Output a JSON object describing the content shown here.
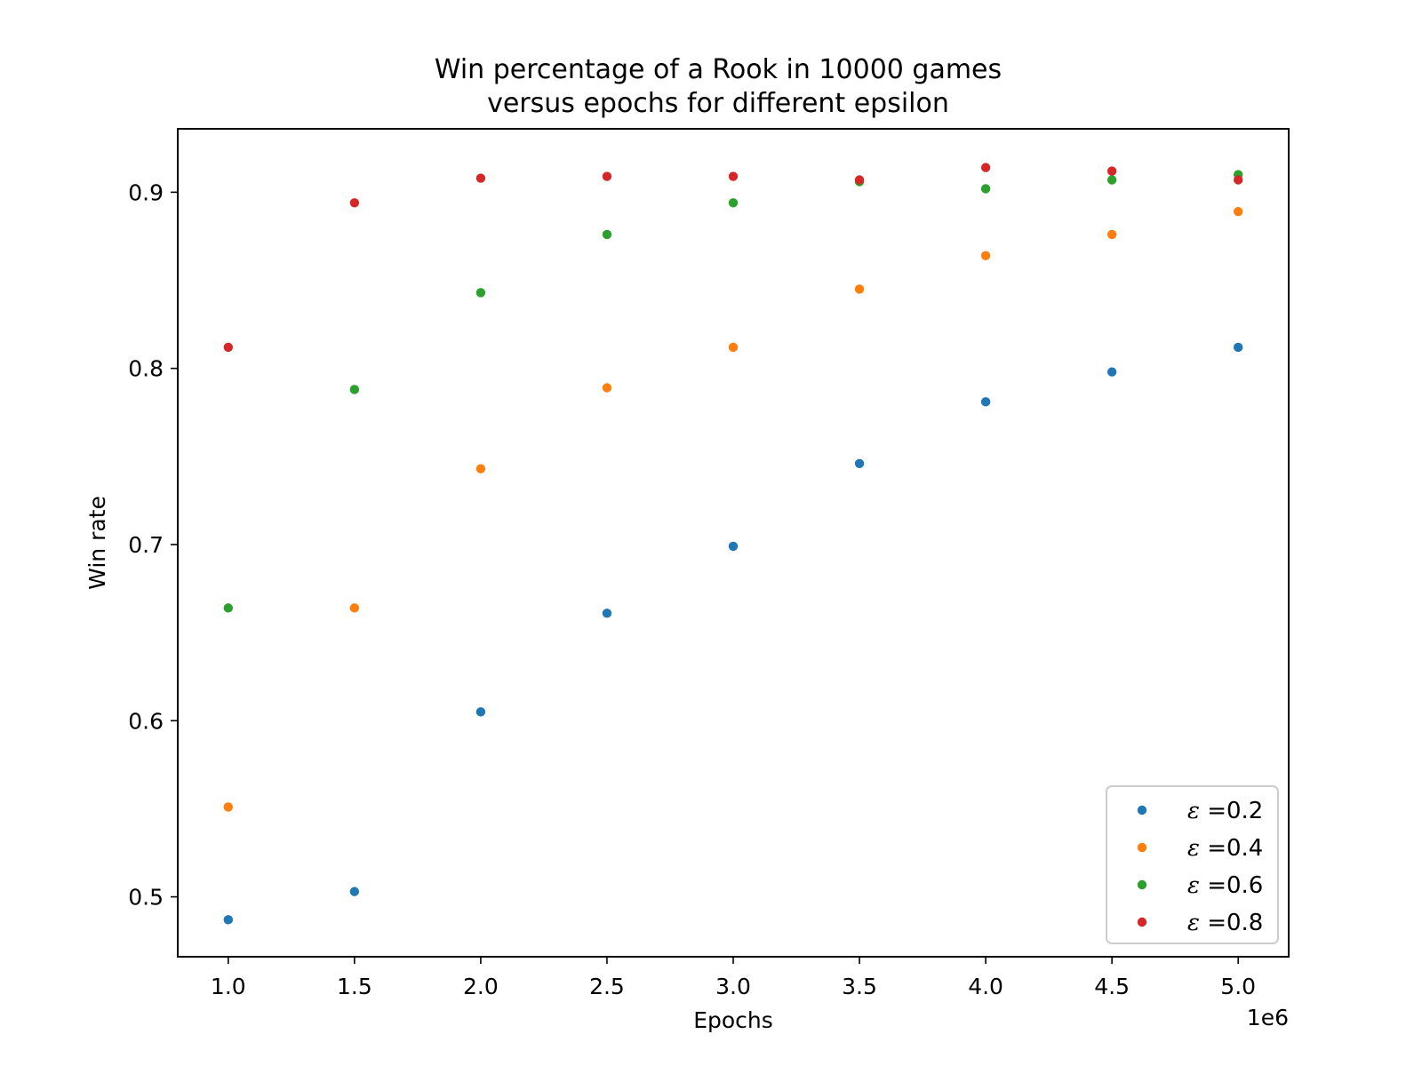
{
  "chart_data": {
    "type": "scatter",
    "title": "Win percentage of a Rook in 10000 games\nversus epochs for different epsilon",
    "title_lines": [
      "Win percentage of a Rook in 10000 games",
      "versus epochs for different epsilon"
    ],
    "xlabel": "Epochs",
    "ylabel": "Win rate",
    "x_offset_label": "1e6",
    "xlim": [
      0.8,
      5.2
    ],
    "ylim": [
      0.466,
      0.936
    ],
    "x_ticks": [
      1.0,
      1.5,
      2.0,
      2.5,
      3.0,
      3.5,
      4.0,
      4.5,
      5.0
    ],
    "x_tick_labels": [
      "1.0",
      "1.5",
      "2.0",
      "2.5",
      "3.0",
      "3.5",
      "4.0",
      "4.5",
      "5.0"
    ],
    "y_ticks": [
      0.5,
      0.6,
      0.7,
      0.8,
      0.9
    ],
    "y_tick_labels": [
      "0.5",
      "0.6",
      "0.7",
      "0.8",
      "0.9"
    ],
    "grid": false,
    "legend_position": "lower-right",
    "x": [
      1.0,
      1.5,
      2.0,
      2.5,
      3.0,
      3.5,
      4.0,
      4.5,
      5.0
    ],
    "series": [
      {
        "name": "ε =0.2",
        "symbol": "ε",
        "value_label": " =0.2",
        "color": "#1f77b4",
        "values": [
          0.487,
          0.503,
          0.605,
          0.661,
          0.699,
          0.746,
          0.781,
          0.798,
          0.812
        ]
      },
      {
        "name": "ε =0.4",
        "symbol": "ε",
        "value_label": " =0.4",
        "color": "#ff7f0e",
        "values": [
          0.551,
          0.664,
          0.743,
          0.789,
          0.812,
          0.845,
          0.864,
          0.876,
          0.889
        ]
      },
      {
        "name": "ε =0.6",
        "symbol": "ε",
        "value_label": " =0.6",
        "color": "#2ca02c",
        "values": [
          0.664,
          0.788,
          0.843,
          0.876,
          0.894,
          0.906,
          0.902,
          0.907,
          0.91
        ]
      },
      {
        "name": "ε =0.8",
        "symbol": "ε",
        "value_label": " =0.8",
        "color": "#d62728",
        "values": [
          0.812,
          0.894,
          0.908,
          0.909,
          0.909,
          0.907,
          0.914,
          0.912,
          0.907
        ]
      }
    ]
  }
}
